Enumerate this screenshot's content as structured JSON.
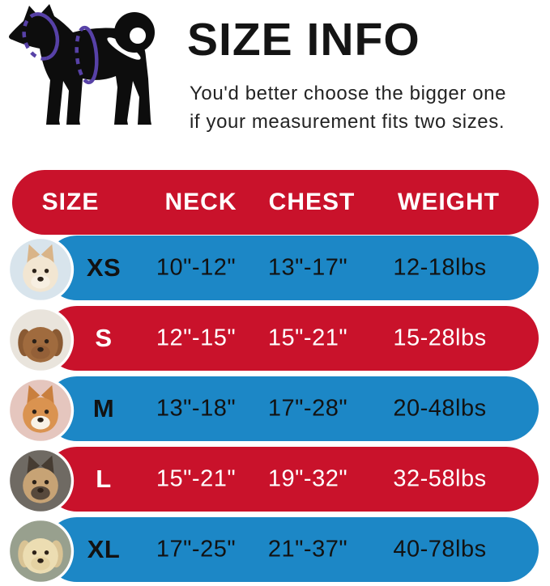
{
  "chart_data": {
    "type": "table",
    "title": "SIZE INFO",
    "subtitle": [
      "You'd better choose the bigger one",
      "if your measurement fits two sizes."
    ],
    "columns": [
      "SIZE",
      "NECK",
      "CHEST",
      "WEIGHT"
    ],
    "rows": [
      {
        "size": "XS",
        "neck": "10\"-12\"",
        "chest": "13\"-17\"",
        "weight": "12-18lbs",
        "photo": "pomeranian-dog-photo"
      },
      {
        "size": "S",
        "neck": "12\"-15\"",
        "chest": "15\"-21\"",
        "weight": "15-28lbs",
        "photo": "poodle-dog-photo"
      },
      {
        "size": "M",
        "neck": "13\"-18\"",
        "chest": "17\"-28\"",
        "weight": "20-48lbs",
        "photo": "shiba-inu-dog-photo"
      },
      {
        "size": "L",
        "neck": "15\"-21\"",
        "chest": "19\"-32\"",
        "weight": "32-58lbs",
        "photo": "french-bulldog-dog-photo"
      },
      {
        "size": "XL",
        "neck": "17\"-25\"",
        "chest": "21\"-37\"",
        "weight": "40-78lbs",
        "photo": "labrador-dog-photo"
      }
    ],
    "legend_position": "none",
    "grid": false
  },
  "diagram": {
    "name": "dog-silhouette-with-neck-and-chest-measurement-lines",
    "silhouette_color": "#0d0d0d",
    "measure_line_color": "#5741a7"
  },
  "style": {
    "css_vars": {
      "header-bg": "#C9122B",
      "header-text": "#ffffff",
      "row-blue": "#1C87C6",
      "row-blue-text": "#121212",
      "row-red": "#C9122B",
      "row-red-text": "#ffffff"
    },
    "row_themes": [
      "blue",
      "red",
      "blue",
      "red",
      "blue"
    ],
    "avatars": [
      {
        "ears": "pointy",
        "bg": "#d8e4ec",
        "fur": "#f2e6d2",
        "ear": "#d9b488",
        "muzzle": "#f7efe2"
      },
      {
        "ears": "floppy",
        "bg": "#e9e4dc",
        "fur": "#a06b3e",
        "ear": "#8a5a33",
        "muzzle": "#946038"
      },
      {
        "ears": "pointy",
        "bg": "#e5c6be",
        "fur": "#da9350",
        "ear": "#c97f3e",
        "muzzle": "#f8f2e6"
      },
      {
        "ears": "pointy",
        "bg": "#6f6a63",
        "fur": "#c7a375",
        "ear": "#463c32",
        "muzzle": "#57493c"
      },
      {
        "ears": "floppy",
        "bg": "#98a08e",
        "fur": "#ecddb2",
        "ear": "#d9c394",
        "muzzle": "#e4d2a2"
      }
    ]
  }
}
